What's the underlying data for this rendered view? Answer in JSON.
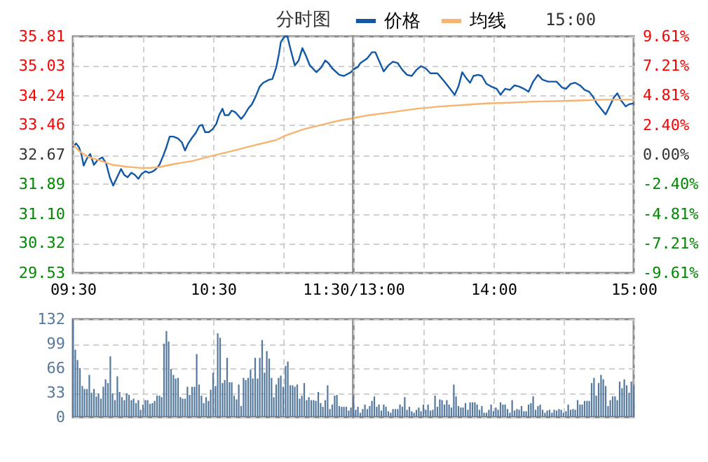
{
  "chart_data": [
    {
      "type": "line",
      "title": "分时图",
      "grid": true,
      "tick_labels": "xy",
      "xlim": [
        9.5,
        11.5
      ],
      "xticks": [
        {
          "value": 9.5,
          "label": "09:30"
        },
        {
          "value": 10,
          "label": null
        },
        {
          "value": 10.5,
          "label": "10:30"
        },
        {
          "value": 11,
          "label": null
        },
        {
          "value": 11.5,
          "label": "11:30/13:00"
        }
      ],
      "ylim": [
        29.53,
        35.81
      ],
      "yticks": [
        {
          "value": 29.53,
          "label": "29.53"
        },
        {
          "value": 30.32,
          "label": "30.32"
        },
        {
          "value": 31.1,
          "label": "31.10"
        },
        {
          "value": 31.89,
          "label": "31.89"
        },
        {
          "value": 32.67,
          "label": "32.67"
        },
        {
          "value": 33.46,
          "label": "33.46"
        },
        {
          "value": 34.24,
          "label": "34.24"
        },
        {
          "value": 35.03,
          "label": "35.03"
        },
        {
          "value": 35.81,
          "label": "35.81"
        }
      ],
      "series": [
        {
          "color": "#1358a5",
          "x": [
            9.5,
            9.523,
            9.543,
            9.56,
            9.577,
            9.6,
            9.623,
            9.65,
            9.677,
            9.71,
            9.737,
            9.763,
            9.787,
            9.81,
            9.843,
            9.867,
            9.89,
            9.917,
            9.943,
            9.967,
            9.99,
            10.017,
            10.043,
            10.067,
            10.09,
            10.117,
            10.143,
            10.167,
            10.19,
            10.217,
            10.25,
            10.277,
            10.3,
            10.323,
            10.35,
            10.377,
            10.403,
            10.423,
            10.443,
            10.47,
            10.497,
            10.523,
            10.543,
            10.567,
            10.583,
            10.61,
            10.633,
            10.657,
            10.677,
            10.7,
            10.723,
            10.75,
            10.777,
            10.803,
            10.833,
            10.857,
            10.9,
            10.923,
            10.95,
            10.97,
            10.983,
            11.01,
            11.03,
            11.05,
            11.083,
            11.11,
            11.137,
            11.163,
            11.19,
            11.237,
            11.27,
            11.3,
            11.323,
            11.35,
            11.4,
            11.433,
            11.483,
            11.5
          ],
          "values": [
            32.87,
            32.97,
            32.87,
            32.69,
            32.38,
            32.57,
            32.69,
            32.4,
            32.53,
            32.6,
            32.44,
            32.07,
            31.85,
            32.03,
            32.29,
            32.13,
            32.07,
            32.19,
            32.13,
            32.03,
            32.16,
            32.23,
            32.19,
            32.22,
            32.28,
            32.4,
            32.63,
            32.87,
            33.15,
            33.15,
            33.1,
            33.0,
            32.78,
            32.97,
            33.12,
            33.25,
            33.44,
            33.46,
            33.27,
            33.27,
            33.35,
            33.49,
            33.72,
            33.89,
            33.72,
            33.72,
            33.84,
            33.8,
            33.72,
            33.62,
            33.72,
            33.89,
            34.01,
            34.21,
            34.48,
            34.58,
            34.66,
            34.68,
            34.98,
            35.35,
            35.66,
            35.81,
            35.81,
            35.5,
            35.04,
            35.17,
            35.5,
            35.29,
            35.04,
            34.86,
            34.98,
            35.17,
            35.1,
            34.96,
            34.79,
            34.76,
            34.86,
            34.93
          ]
        },
        {
          "color": "#f7b470",
          "x": [
            9.5,
            9.55,
            9.617,
            9.683,
            9.783,
            9.883,
            9.983,
            10.05,
            10.117,
            10.217,
            10.35,
            10.483,
            10.617,
            10.783,
            10.95,
            11.017,
            11.15,
            11.283,
            11.417,
            11.5
          ],
          "values": [
            32.94,
            32.75,
            32.6,
            32.53,
            32.4,
            32.35,
            32.32,
            32.32,
            32.34,
            32.42,
            32.5,
            32.63,
            32.75,
            32.91,
            33.06,
            33.18,
            33.35,
            33.47,
            33.59,
            33.64
          ]
        }
      ]
    },
    {
      "type": "line",
      "annotations": [
        "15:00"
      ],
      "legend": "top",
      "grid": true,
      "tick_labels": "x",
      "xlim": [
        13,
        15
      ],
      "xticks": [
        {
          "value": 13,
          "label": null
        },
        {
          "value": 13.5,
          "label": null
        },
        {
          "value": 14,
          "label": "14:00"
        },
        {
          "value": 14.5,
          "label": null
        },
        {
          "value": 15,
          "label": "15:00"
        }
      ],
      "ylim": [
        29.53,
        35.81
      ],
      "yticks": [
        29.53,
        30.32,
        31.1,
        31.89,
        32.67,
        33.46,
        34.24,
        35.03,
        35.81
      ],
      "y2lim": [
        -9.61,
        9.61
      ],
      "y2ticks": [
        {
          "value": -9.61,
          "label": "-9.61%"
        },
        {
          "value": -7.21,
          "label": "-7.21%"
        },
        {
          "value": -4.81,
          "label": "-4.81%"
        },
        {
          "value": -2.4,
          "label": "-2.40%"
        },
        {
          "value": 0,
          "label": "0.00%"
        },
        {
          "value": 2.4,
          "label": "2.40%"
        },
        {
          "value": 4.81,
          "label": "4.81%"
        },
        {
          "value": 7.21,
          "label": "7.21%"
        },
        {
          "value": 9.61,
          "label": "9.61%"
        }
      ],
      "series": [
        {
          "name": "价格",
          "color": "#1358a5",
          "x": [
            13,
            13.033,
            13.05,
            13.1,
            13.133,
            13.157,
            13.183,
            13.217,
            13.25,
            13.283,
            13.317,
            13.35,
            13.383,
            13.417,
            13.45,
            13.483,
            13.517,
            13.55,
            13.6,
            13.65,
            13.69,
            13.723,
            13.75,
            13.777,
            13.81,
            13.833,
            13.857,
            13.89,
            13.917,
            13.95,
            13.983,
            14.023,
            14.05,
            14.083,
            14.117,
            14.15,
            14.183,
            14.217,
            14.25,
            14.283,
            14.317,
            14.35,
            14.39,
            14.45,
            14.49,
            14.517,
            14.55,
            14.583,
            14.617,
            14.65,
            14.683,
            14.71,
            14.733,
            14.767,
            14.8,
            14.833,
            14.857,
            14.883,
            14.91,
            14.943,
            14.967,
            15
          ],
          "values": [
            34.93,
            35.0,
            35.1,
            35.23,
            35.39,
            35.39,
            35.17,
            34.88,
            35.04,
            35.14,
            35.1,
            34.92,
            34.79,
            34.76,
            34.92,
            35.02,
            34.96,
            34.83,
            34.83,
            34.61,
            34.42,
            34.26,
            34.48,
            34.86,
            34.68,
            34.58,
            34.76,
            34.79,
            34.76,
            34.55,
            34.48,
            34.42,
            34.26,
            34.42,
            34.39,
            34.51,
            34.48,
            34.42,
            34.34,
            34.61,
            34.79,
            34.66,
            34.61,
            34.61,
            34.45,
            34.42,
            34.55,
            34.58,
            34.51,
            34.39,
            34.34,
            34.21,
            34.05,
            33.89,
            33.74,
            33.99,
            34.18,
            34.3,
            34.11,
            33.95,
            34.01,
            34.03
          ]
        },
        {
          "name": "均线",
          "color": "#f7b470",
          "x": [
            13,
            13.05,
            13.117,
            13.283,
            13.45,
            13.617,
            13.783,
            13.95,
            14.117,
            14.283,
            14.45,
            14.617,
            14.783,
            15
          ],
          "values": [
            33.64,
            33.68,
            33.72,
            33.8,
            33.89,
            33.95,
            33.99,
            34.03,
            34.05,
            34.08,
            34.09,
            34.11,
            34.13,
            34.13
          ]
        }
      ]
    },
    {
      "type": "bar",
      "grid": true,
      "tick_labels": "y",
      "color": "#55799e",
      "xlim": [
        9.5,
        11.5
      ],
      "xticks": [
        9.5,
        10,
        10.5,
        11,
        11.5
      ],
      "ylim": [
        0,
        132
      ],
      "yticks": [
        0,
        33,
        66,
        99,
        132
      ],
      "x": [
        9.5,
        9.517,
        9.533,
        9.55,
        9.567,
        9.583,
        9.6,
        9.617,
        9.633,
        9.65,
        9.667,
        9.683,
        9.7,
        9.717,
        9.733,
        9.75,
        9.767,
        9.783,
        9.8,
        9.817,
        9.833,
        9.85,
        9.867,
        9.883,
        9.9,
        9.917,
        9.933,
        9.95,
        9.967,
        9.983,
        10,
        10.017,
        10.033,
        10.05,
        10.067,
        10.083,
        10.1,
        10.117,
        10.133,
        10.15,
        10.167,
        10.183,
        10.2,
        10.217,
        10.233,
        10.25,
        10.267,
        10.283,
        10.3,
        10.317,
        10.333,
        10.35,
        10.367,
        10.383,
        10.4,
        10.417,
        10.433,
        10.45,
        10.467,
        10.483,
        10.5,
        10.517,
        10.533,
        10.55,
        10.567,
        10.583,
        10.6,
        10.617,
        10.633,
        10.65,
        10.667,
        10.683,
        10.7,
        10.717,
        10.733,
        10.75,
        10.767,
        10.783,
        10.8,
        10.817,
        10.833,
        10.85,
        10.867,
        10.883,
        10.9,
        10.917,
        10.933,
        10.95,
        10.967,
        10.983,
        11,
        11.017,
        11.033,
        11.05,
        11.067,
        11.083,
        11.1,
        11.117,
        11.133,
        11.15,
        11.167,
        11.183,
        11.2,
        11.217,
        11.233,
        11.25,
        11.267,
        11.283,
        11.3,
        11.317,
        11.333,
        11.35,
        11.367,
        11.383,
        11.4,
        11.417,
        11.433,
        11.45,
        11.467,
        11.483
      ],
      "values": [
        132,
        91,
        77,
        66,
        42,
        38,
        38,
        57,
        33,
        38,
        28,
        32,
        25,
        41,
        51,
        46,
        82,
        32,
        23,
        55,
        34,
        27,
        23,
        32,
        30,
        23,
        25,
        19,
        23,
        10,
        17,
        23,
        23,
        18,
        19,
        22,
        29,
        29,
        27,
        99,
        116,
        102,
        65,
        57,
        52,
        53,
        27,
        25,
        25,
        41,
        30,
        41,
        41,
        85,
        44,
        29,
        19,
        27,
        22,
        37,
        60,
        42,
        113,
        107,
        46,
        50,
        80,
        47,
        47,
        29,
        24,
        44,
        15,
        53,
        50,
        53,
        64,
        52,
        80,
        52,
        80,
        104,
        60,
        89,
        79,
        53,
        27,
        44,
        53,
        56,
        41,
        69,
        75,
        43,
        43,
        41,
        44,
        25,
        29,
        46,
        23,
        27,
        23,
        23,
        22,
        34,
        19,
        14,
        23,
        43,
        11,
        17,
        29,
        30,
        15,
        14,
        14,
        14,
        9,
        13
      ]
    },
    {
      "type": "bar",
      "grid": true,
      "tick_labels": false,
      "color": "#55799e",
      "xlim": [
        13,
        15
      ],
      "xticks": [
        13,
        13.5,
        14,
        14.5,
        15
      ],
      "ylim": [
        0,
        132
      ],
      "yticks": [
        0,
        33,
        66,
        99,
        132
      ],
      "x": [
        13,
        13.017,
        13.033,
        13.05,
        13.067,
        13.083,
        13.1,
        13.117,
        13.133,
        13.15,
        13.167,
        13.183,
        13.2,
        13.217,
        13.233,
        13.25,
        13.267,
        13.283,
        13.3,
        13.317,
        13.333,
        13.35,
        13.367,
        13.383,
        13.4,
        13.417,
        13.433,
        13.45,
        13.467,
        13.483,
        13.5,
        13.517,
        13.533,
        13.55,
        13.567,
        13.583,
        13.6,
        13.617,
        13.633,
        13.65,
        13.667,
        13.683,
        13.7,
        13.717,
        13.733,
        13.75,
        13.767,
        13.783,
        13.8,
        13.817,
        13.833,
        13.85,
        13.867,
        13.883,
        13.9,
        13.917,
        13.933,
        13.95,
        13.967,
        13.983,
        14,
        14.017,
        14.033,
        14.05,
        14.067,
        14.083,
        14.1,
        14.117,
        14.133,
        14.15,
        14.167,
        14.183,
        14.2,
        14.217,
        14.233,
        14.25,
        14.267,
        14.283,
        14.3,
        14.317,
        14.333,
        14.35,
        14.367,
        14.383,
        14.4,
        14.417,
        14.433,
        14.45,
        14.467,
        14.483,
        14.5,
        14.517,
        14.533,
        14.55,
        14.567,
        14.583,
        14.6,
        14.617,
        14.633,
        14.65,
        14.667,
        14.683,
        14.7,
        14.717,
        14.733,
        14.75,
        14.767,
        14.783,
        14.8,
        14.817,
        14.833,
        14.85,
        14.867,
        14.883,
        14.9,
        14.917,
        14.933,
        14.95,
        14.967,
        14.983,
        15
      ],
      "values": [
        27,
        10,
        14,
        6,
        11,
        17,
        11,
        15,
        22,
        28,
        14,
        17,
        9,
        17,
        14,
        8,
        6,
        11,
        11,
        11,
        17,
        14,
        27,
        10,
        14,
        8,
        6,
        10,
        13,
        8,
        17,
        10,
        17,
        9,
        10,
        29,
        14,
        24,
        23,
        17,
        23,
        17,
        13,
        44,
        28,
        15,
        13,
        13,
        19,
        10,
        20,
        20,
        20,
        17,
        10,
        15,
        6,
        6,
        10,
        17,
        8,
        13,
        10,
        20,
        17,
        17,
        11,
        6,
        23,
        9,
        11,
        10,
        15,
        8,
        8,
        17,
        19,
        28,
        10,
        15,
        17,
        10,
        6,
        9,
        10,
        6,
        10,
        9,
        11,
        10,
        6,
        8,
        17,
        10,
        11,
        10,
        23,
        17,
        17,
        22,
        22,
        22,
        46,
        53,
        29,
        46,
        57,
        51,
        42,
        15,
        23,
        28,
        28,
        23,
        48,
        39,
        51,
        43,
        33,
        48,
        42
      ]
    }
  ]
}
